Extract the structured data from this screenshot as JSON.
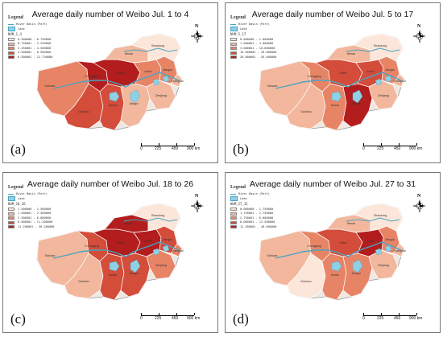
{
  "colors": {
    "lake": "#8ed1e6",
    "river": "#4aa3c2",
    "boundary": "#ffffff",
    "outline": "#999999",
    "background_region": "#efe8e2"
  },
  "legend": {
    "title": "Legend",
    "river_label": "River Basin (Part)",
    "lake_label": "Lake"
  },
  "scale": {
    "labels": [
      "0",
      "225",
      "450",
      "900 km"
    ]
  },
  "north_label": "N",
  "panels": [
    {
      "id": "a",
      "title": "Average daily number of Weibo Jul. 1 to 4",
      "label": "(a)",
      "variable": "NUM_1_4",
      "classes": [
        {
          "range": "0.500000 - 0.750000",
          "color": "#fce6d9"
        },
        {
          "range": "0.750001 - 2.250000",
          "color": "#f2b79c"
        },
        {
          "range": "2.250001 - 4.500000",
          "color": "#e88466"
        },
        {
          "range": "4.500001 - 6.500000",
          "color": "#d44c3a"
        },
        {
          "range": "6.500001 - 12.750000",
          "color": "#b31d1d"
        }
      ],
      "regions": [
        {
          "name": "Sichuan",
          "class": 2
        },
        {
          "name": "Chongqing",
          "class": 4
        },
        {
          "name": "Guizhou",
          "class": 3
        },
        {
          "name": "Hubei",
          "class": 4
        },
        {
          "name": "Hunan",
          "class": 3
        },
        {
          "name": "Henan",
          "class": 1
        },
        {
          "name": "Anhui",
          "class": 2
        },
        {
          "name": "Jiangxi",
          "class": 1
        },
        {
          "name": "Zhejiang",
          "class": 1
        },
        {
          "name": "Jiangsu",
          "class": 2
        },
        {
          "name": "Shanghai",
          "class": 1
        },
        {
          "name": "Shandong",
          "class": 0
        }
      ]
    },
    {
      "id": "b",
      "title": "Average daily number of Weibo Jul. 5 to 17",
      "label": "(b)",
      "variable": "NUM_5_17",
      "classes": [
        {
          "range": "0.000000 - 1.000000",
          "color": "#fce6d9"
        },
        {
          "range": "1.000001 - 3.000000",
          "color": "#f2b79c"
        },
        {
          "range": "3.000001 - 10.000000",
          "color": "#e88466"
        },
        {
          "range": "10.000001 - 20.000000",
          "color": "#d44c3a"
        },
        {
          "range": "20.000001 - 55.000000",
          "color": "#b31d1d"
        }
      ],
      "regions": [
        {
          "name": "Sichuan",
          "class": 1
        },
        {
          "name": "Chongqing",
          "class": 2
        },
        {
          "name": "Guizhou",
          "class": 1
        },
        {
          "name": "Hubei",
          "class": 3
        },
        {
          "name": "Hunan",
          "class": 2
        },
        {
          "name": "Henan",
          "class": 1
        },
        {
          "name": "Anhui",
          "class": 3
        },
        {
          "name": "Jiangxi",
          "class": 4
        },
        {
          "name": "Zhejiang",
          "class": 1
        },
        {
          "name": "Jiangsu",
          "class": 2
        },
        {
          "name": "Shanghai",
          "class": 1
        },
        {
          "name": "Shandong",
          "class": 0
        }
      ]
    },
    {
      "id": "c",
      "title": "Average daily number of Weibo Jul. 18 to 26",
      "label": "(c)",
      "variable": "NUM_18_26",
      "classes": [
        {
          "range": "1.500000 - 1.500000",
          "color": "#fce6d9"
        },
        {
          "range": "1.500001 - 2.500000",
          "color": "#f2b79c"
        },
        {
          "range": "2.500001 - 6.000000",
          "color": "#e88466"
        },
        {
          "range": "6.000001 - 11.200000",
          "color": "#d44c3a"
        },
        {
          "range": "11.200001 - 30.200000",
          "color": "#b31d1d"
        }
      ],
      "regions": [
        {
          "name": "Sichuan",
          "class": 1
        },
        {
          "name": "Chongqing",
          "class": 3
        },
        {
          "name": "Guizhou",
          "class": 1
        },
        {
          "name": "Hubei",
          "class": 4
        },
        {
          "name": "Hunan",
          "class": 3
        },
        {
          "name": "Henan",
          "class": 4
        },
        {
          "name": "Anhui",
          "class": 4
        },
        {
          "name": "Jiangxi",
          "class": 3
        },
        {
          "name": "Zhejiang",
          "class": 2
        },
        {
          "name": "Jiangsu",
          "class": 3
        },
        {
          "name": "Shanghai",
          "class": 2
        },
        {
          "name": "Shandong",
          "class": 0
        }
      ]
    },
    {
      "id": "d",
      "title": "Average daily number of Weibo Jul. 27 to 31",
      "label": "(d)",
      "variable": "NUM_27_31",
      "classes": [
        {
          "range": "0.000000 - 1.750000",
          "color": "#fce6d9"
        },
        {
          "range": "1.750001 - 2.750000",
          "color": "#f2b79c"
        },
        {
          "range": "2.750001 - 6.000000",
          "color": "#e88466"
        },
        {
          "range": "6.000001 - 12.500000",
          "color": "#d44c3a"
        },
        {
          "range": "12.500001 - 40.000000",
          "color": "#b31d1d"
        }
      ],
      "regions": [
        {
          "name": "Sichuan",
          "class": 1
        },
        {
          "name": "Chongqing",
          "class": 2
        },
        {
          "name": "Guizhou",
          "class": 0
        },
        {
          "name": "Hubei",
          "class": 3
        },
        {
          "name": "Hunan",
          "class": 2
        },
        {
          "name": "Henan",
          "class": 1
        },
        {
          "name": "Anhui",
          "class": 4
        },
        {
          "name": "Jiangxi",
          "class": 2
        },
        {
          "name": "Zhejiang",
          "class": 1
        },
        {
          "name": "Jiangsu",
          "class": 2
        },
        {
          "name": "Shanghai",
          "class": 1
        },
        {
          "name": "Shandong",
          "class": 0
        }
      ]
    }
  ]
}
